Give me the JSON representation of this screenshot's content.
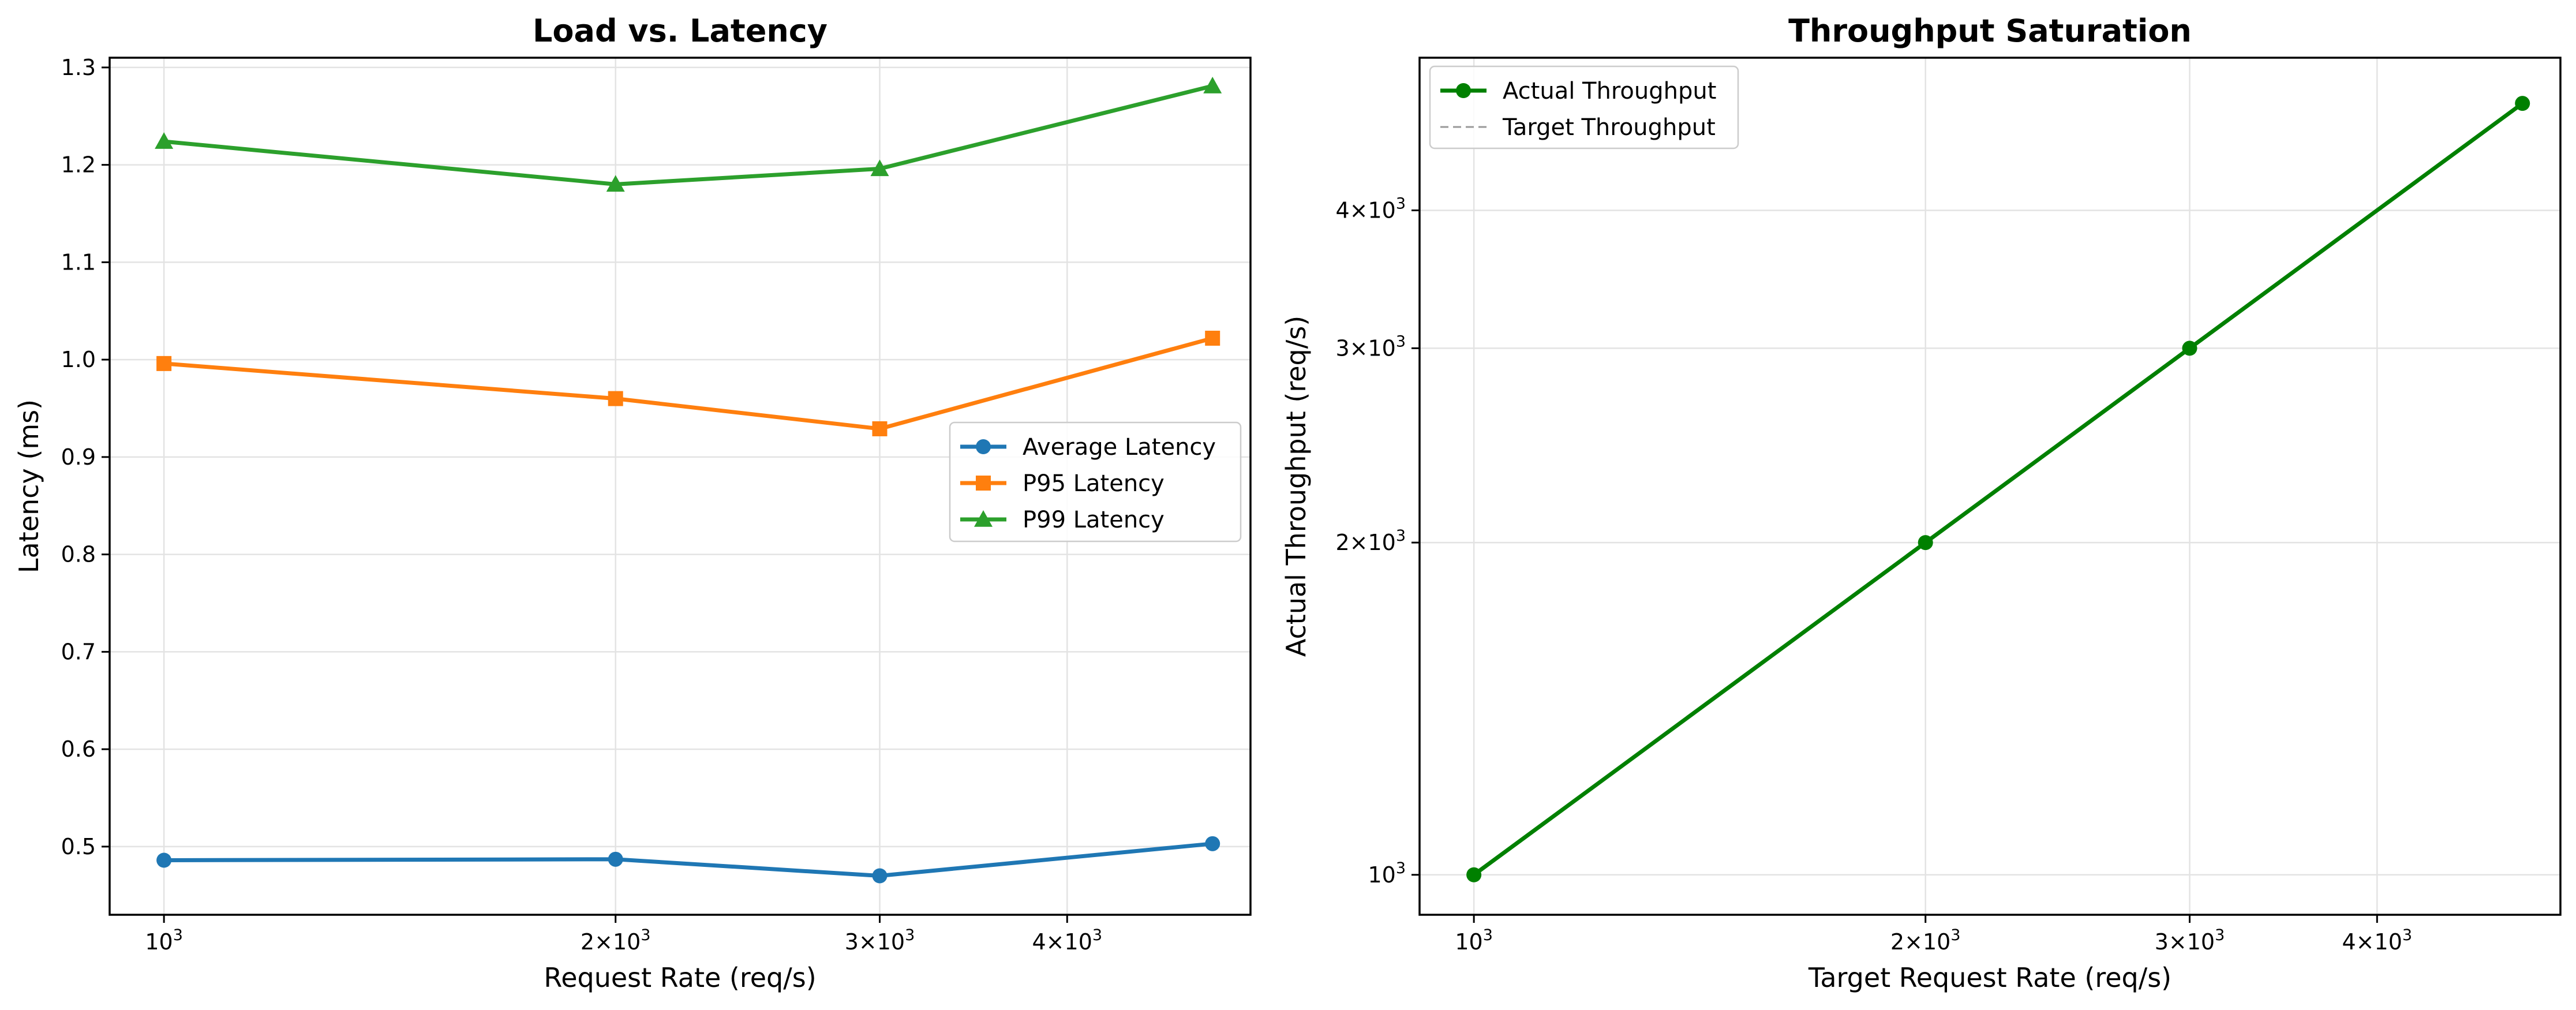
{
  "chart_data": [
    {
      "type": "line",
      "title": "Load vs. Latency",
      "xlabel": "Request Rate (req/s)",
      "ylabel": "Latency (ms)",
      "xscale": "log",
      "xlim": [
        920,
        5300
      ],
      "ylim": [
        0.43,
        1.31
      ],
      "grid": true,
      "legend_position": "center-right",
      "x": [
        1000,
        2000,
        3000,
        5000
      ],
      "x_ticks": [
        {
          "value": 1000,
          "base": "10",
          "exp": "3"
        },
        {
          "value": 2000,
          "base": "2×10",
          "exp": "3"
        },
        {
          "value": 3000,
          "base": "3×10",
          "exp": "3"
        },
        {
          "value": 4000,
          "base": "4×10",
          "exp": "3"
        }
      ],
      "y_ticks": [
        "0.5",
        "0.6",
        "0.7",
        "0.8",
        "0.9",
        "1.0",
        "1.1",
        "1.2",
        "1.3"
      ],
      "series": [
        {
          "name": "Average Latency",
          "color": "#1f77b4",
          "marker": "circle",
          "values": [
            0.486,
            0.487,
            0.47,
            0.503
          ]
        },
        {
          "name": "P95 Latency",
          "color": "#ff7f0e",
          "marker": "square",
          "values": [
            0.996,
            0.96,
            0.929,
            1.022
          ]
        },
        {
          "name": "P99 Latency",
          "color": "#2ca02c",
          "marker": "triangle",
          "values": [
            1.224,
            1.18,
            1.196,
            1.281
          ]
        }
      ]
    },
    {
      "type": "line",
      "title": "Throughput Saturation",
      "xlabel": "Target Request Rate (req/s)",
      "ylabel": "Actual Throughput (req/s)",
      "xscale": "log",
      "yscale": "log",
      "xlim": [
        920,
        5300
      ],
      "ylim": [
        920,
        5500
      ],
      "grid": true,
      "legend_position": "top-left",
      "x": [
        1000,
        2000,
        3000,
        5000
      ],
      "x_ticks": [
        {
          "value": 1000,
          "base": "10",
          "exp": "3"
        },
        {
          "value": 2000,
          "base": "2×10",
          "exp": "3"
        },
        {
          "value": 3000,
          "base": "3×10",
          "exp": "3"
        },
        {
          "value": 4000,
          "base": "4×10",
          "exp": "3"
        }
      ],
      "y_ticks": [
        {
          "value": 1000,
          "base": "10",
          "exp": "3"
        },
        {
          "value": 2000,
          "base": "2×10",
          "exp": "3"
        },
        {
          "value": 3000,
          "base": "3×10",
          "exp": "3"
        },
        {
          "value": 4000,
          "base": "4×10",
          "exp": "3"
        }
      ],
      "series": [
        {
          "name": "Actual Throughput",
          "color": "#008000",
          "marker": "circle",
          "style": "solid",
          "values": [
            1000,
            2000,
            3000,
            5000
          ]
        },
        {
          "name": "Target Throughput",
          "color": "#999999",
          "marker": "none",
          "style": "dashed",
          "values": [
            1000,
            2000,
            3000,
            5000
          ]
        }
      ]
    }
  ]
}
